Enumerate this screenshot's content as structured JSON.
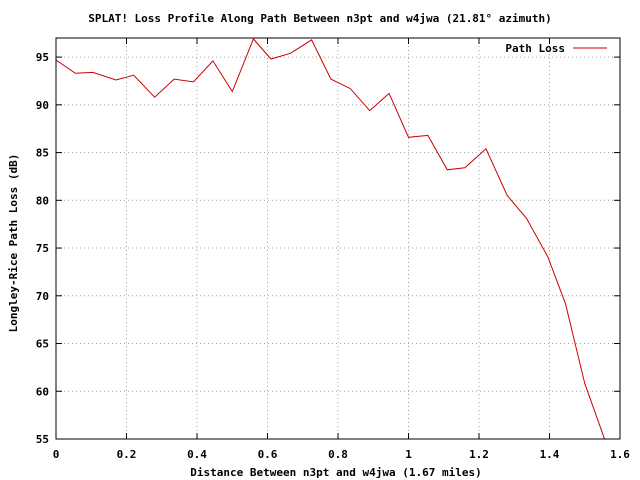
{
  "chart_data": {
    "type": "line",
    "title": "SPLAT! Loss Profile Along Path Between n3pt and w4jwa (21.81° azimuth)",
    "xlabel": "Distance Between n3pt and w4jwa (1.67 miles)",
    "ylabel": "Longley-Rice Path Loss (dB)",
    "xlim": [
      0,
      1.6
    ],
    "ylim": [
      55,
      97
    ],
    "x_ticks": [
      "0",
      "0.2",
      "0.4",
      "0.6",
      "0.8",
      "1",
      "1.2",
      "1.4",
      "1.6"
    ],
    "y_ticks": [
      "55",
      "60",
      "65",
      "70",
      "75",
      "80",
      "85",
      "90",
      "95"
    ],
    "grid": true,
    "legend_position": "top-right",
    "series": [
      {
        "name": "Path Loss",
        "color": "#cc0000",
        "points": [
          [
            0.0,
            94.7
          ],
          [
            0.055,
            93.3
          ],
          [
            0.105,
            93.4
          ],
          [
            0.17,
            92.6
          ],
          [
            0.22,
            93.1
          ],
          [
            0.28,
            90.8
          ],
          [
            0.335,
            92.7
          ],
          [
            0.39,
            92.4
          ],
          [
            0.445,
            94.6
          ],
          [
            0.5,
            91.4
          ],
          [
            0.56,
            96.9
          ],
          [
            0.61,
            94.8
          ],
          [
            0.665,
            95.4
          ],
          [
            0.725,
            96.8
          ],
          [
            0.78,
            92.7
          ],
          [
            0.835,
            91.7
          ],
          [
            0.89,
            89.4
          ],
          [
            0.945,
            91.2
          ],
          [
            1.0,
            86.6
          ],
          [
            1.055,
            86.8
          ],
          [
            1.11,
            83.2
          ],
          [
            1.16,
            83.4
          ],
          [
            1.22,
            85.4
          ],
          [
            1.28,
            80.5
          ],
          [
            1.335,
            78.1
          ],
          [
            1.395,
            74.1
          ],
          [
            1.445,
            69.2
          ],
          [
            1.5,
            60.8
          ],
          [
            1.56,
            54.6
          ]
        ]
      }
    ]
  }
}
